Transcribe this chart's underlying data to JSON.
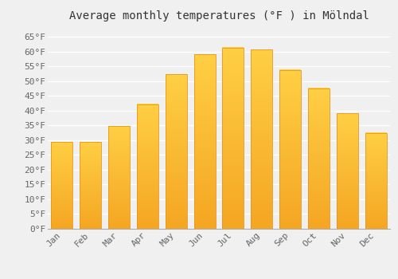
{
  "title": "Average monthly temperatures (°F ) in Mölndal",
  "months": [
    "Jan",
    "Feb",
    "Mar",
    "Apr",
    "May",
    "Jun",
    "Jul",
    "Aug",
    "Sep",
    "Oct",
    "Nov",
    "Dec"
  ],
  "values": [
    29.3,
    29.3,
    34.7,
    42.1,
    52.3,
    59.0,
    61.3,
    60.6,
    53.8,
    47.5,
    39.0,
    32.5
  ],
  "bar_color_top": "#FFCF44",
  "bar_color_bottom": "#F5A623",
  "bar_edge_color": "#E8961A",
  "background_color": "#F0F0F0",
  "grid_color": "#FFFFFF",
  "ylim": [
    0,
    68
  ],
  "yticks": [
    0,
    5,
    10,
    15,
    20,
    25,
    30,
    35,
    40,
    45,
    50,
    55,
    60,
    65
  ],
  "ytick_labels": [
    "0°F",
    "5°F",
    "10°F",
    "15°F",
    "20°F",
    "25°F",
    "30°F",
    "35°F",
    "40°F",
    "45°F",
    "50°F",
    "55°F",
    "60°F",
    "65°F"
  ],
  "title_fontsize": 10,
  "tick_fontsize": 8,
  "font_family": "monospace",
  "bar_width": 0.75
}
